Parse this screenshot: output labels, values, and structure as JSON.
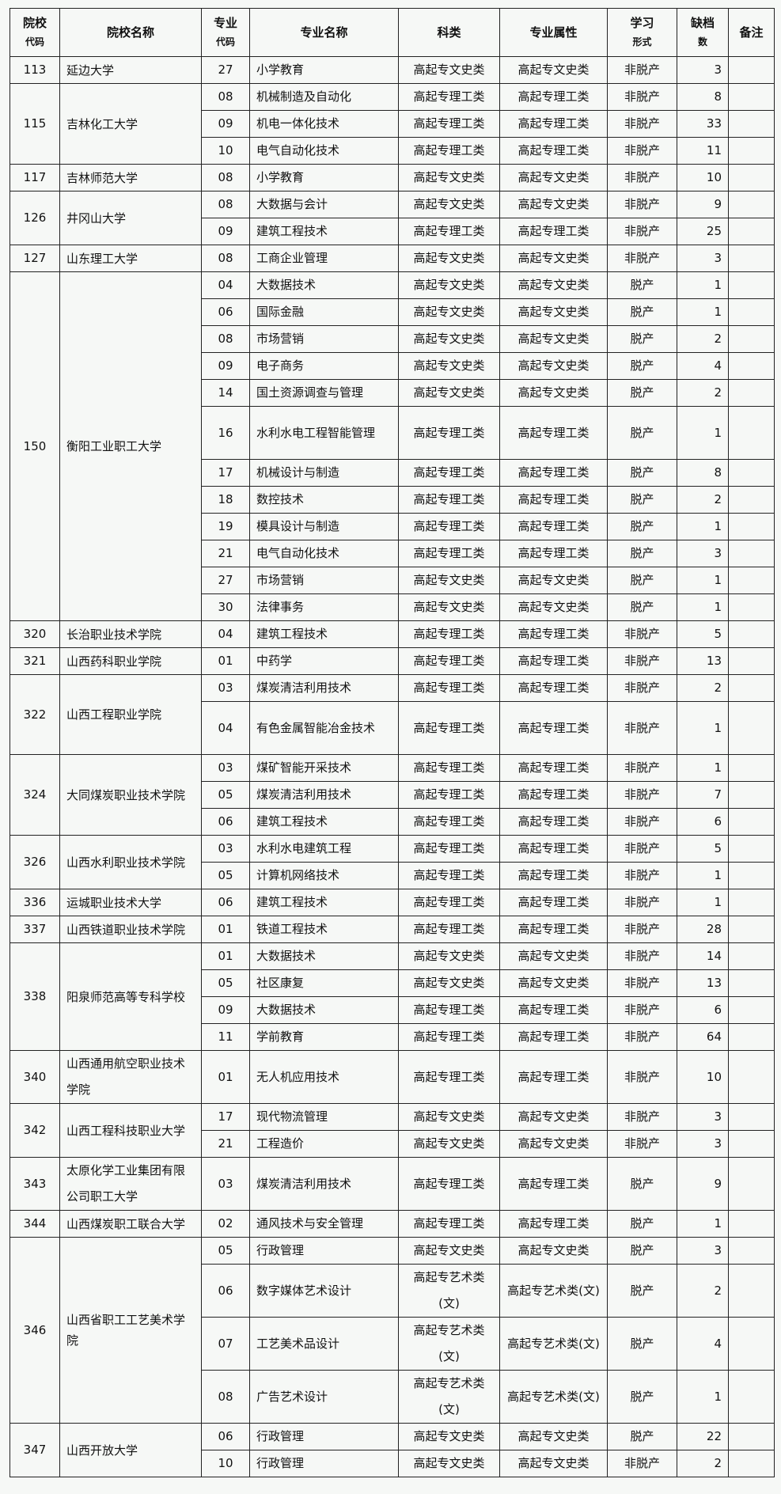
{
  "header": [
    {
      "line1": "院校",
      "line2": "代码"
    },
    {
      "line1": "院校名称",
      "line2": ""
    },
    {
      "line1": "专业",
      "line2": "代码"
    },
    {
      "line1": "专业名称",
      "line2": ""
    },
    {
      "line1": "科类",
      "line2": ""
    },
    {
      "line1": "专业属性",
      "line2": ""
    },
    {
      "line1": "学习",
      "line2": "形式"
    },
    {
      "line1": "缺档",
      "line2": "数"
    },
    {
      "line1": "备注",
      "line2": ""
    }
  ],
  "schools": [
    {
      "code": "113",
      "name": "延边大学",
      "majors": [
        [
          "27",
          "小学教育",
          "高起专文史类",
          "高起专文史类",
          "非脱产",
          "3"
        ]
      ]
    },
    {
      "code": "115",
      "name": "吉林化工大学",
      "majors": [
        [
          "08",
          "机械制造及自动化",
          "高起专理工类",
          "高起专理工类",
          "非脱产",
          "8"
        ],
        [
          "09",
          "机电一体化技术",
          "高起专理工类",
          "高起专理工类",
          "非脱产",
          "33"
        ],
        [
          "10",
          "电气自动化技术",
          "高起专理工类",
          "高起专理工类",
          "非脱产",
          "11"
        ]
      ]
    },
    {
      "code": "117",
      "name": "吉林师范大学",
      "majors": [
        [
          "08",
          "小学教育",
          "高起专文史类",
          "高起专文史类",
          "非脱产",
          "10"
        ]
      ]
    },
    {
      "code": "126",
      "name": "井冈山大学",
      "majors": [
        [
          "08",
          "大数据与会计",
          "高起专文史类",
          "高起专文史类",
          "非脱产",
          "9"
        ],
        [
          "09",
          "建筑工程技术",
          "高起专理工类",
          "高起专理工类",
          "非脱产",
          "25"
        ]
      ]
    },
    {
      "code": "127",
      "name": "山东理工大学",
      "majors": [
        [
          "08",
          "工商企业管理",
          "高起专文史类",
          "高起专文史类",
          "非脱产",
          "3"
        ]
      ]
    },
    {
      "code": "150",
      "name": "衡阳工业职工大学",
      "majors": [
        [
          "04",
          "大数据技术",
          "高起专文史类",
          "高起专文史类",
          "脱产",
          "1"
        ],
        [
          "06",
          "国际金融",
          "高起专文史类",
          "高起专文史类",
          "脱产",
          "1"
        ],
        [
          "08",
          "市场营销",
          "高起专文史类",
          "高起专文史类",
          "脱产",
          "2"
        ],
        [
          "09",
          "电子商务",
          "高起专文史类",
          "高起专文史类",
          "脱产",
          "4"
        ],
        [
          "14",
          "国土资源调查与管理",
          "高起专文史类",
          "高起专文史类",
          "脱产",
          "2"
        ],
        [
          "16",
          "水利水电工程智能管理",
          "高起专理工类",
          "高起专理工类",
          "脱产",
          "1"
        ],
        [
          "17",
          "机械设计与制造",
          "高起专理工类",
          "高起专理工类",
          "脱产",
          "8"
        ],
        [
          "18",
          "数控技术",
          "高起专理工类",
          "高起专理工类",
          "脱产",
          "2"
        ],
        [
          "19",
          "模具设计与制造",
          "高起专理工类",
          "高起专理工类",
          "脱产",
          "1"
        ],
        [
          "21",
          "电气自动化技术",
          "高起专理工类",
          "高起专理工类",
          "脱产",
          "3"
        ],
        [
          "27",
          "市场营销",
          "高起专文史类",
          "高起专文史类",
          "脱产",
          "1"
        ],
        [
          "30",
          "法律事务",
          "高起专文史类",
          "高起专文史类",
          "脱产",
          "1"
        ]
      ]
    },
    {
      "code": "320",
      "name": "长治职业技术学院",
      "majors": [
        [
          "04",
          "建筑工程技术",
          "高起专理工类",
          "高起专理工类",
          "非脱产",
          "5"
        ]
      ]
    },
    {
      "code": "321",
      "name": "山西药科职业学院",
      "majors": [
        [
          "01",
          "中药学",
          "高起专理工类",
          "高起专理工类",
          "非脱产",
          "13"
        ]
      ]
    },
    {
      "code": "322",
      "name": "山西工程职业学院",
      "majors": [
        [
          "03",
          "煤炭清洁利用技术",
          "高起专理工类",
          "高起专理工类",
          "非脱产",
          "2"
        ],
        [
          "04",
          "有色金属智能冶金技术",
          "高起专理工类",
          "高起专理工类",
          "非脱产",
          "1"
        ]
      ]
    },
    {
      "code": "324",
      "name": "大同煤炭职业技术学院",
      "majors": [
        [
          "03",
          "煤矿智能开采技术",
          "高起专理工类",
          "高起专理工类",
          "非脱产",
          "1"
        ],
        [
          "05",
          "煤炭清洁利用技术",
          "高起专理工类",
          "高起专理工类",
          "非脱产",
          "7"
        ],
        [
          "06",
          "建筑工程技术",
          "高起专理工类",
          "高起专理工类",
          "非脱产",
          "6"
        ]
      ]
    },
    {
      "code": "326",
      "name": "山西水利职业技术学院",
      "majors": [
        [
          "03",
          "水利水电建筑工程",
          "高起专理工类",
          "高起专理工类",
          "非脱产",
          "5"
        ],
        [
          "05",
          "计算机网络技术",
          "高起专理工类",
          "高起专理工类",
          "非脱产",
          "1"
        ]
      ]
    },
    {
      "code": "336",
      "name": "运城职业技术大学",
      "majors": [
        [
          "06",
          "建筑工程技术",
          "高起专理工类",
          "高起专理工类",
          "非脱产",
          "1"
        ]
      ]
    },
    {
      "code": "337",
      "name": "山西铁道职业技术学院",
      "majors": [
        [
          "01",
          "铁道工程技术",
          "高起专理工类",
          "高起专理工类",
          "非脱产",
          "28"
        ]
      ]
    },
    {
      "code": "338",
      "name": "阳泉师范高等专科学校",
      "majors": [
        [
          "01",
          "大数据技术",
          "高起专文史类",
          "高起专文史类",
          "非脱产",
          "14"
        ],
        [
          "05",
          "社区康复",
          "高起专文史类",
          "高起专文史类",
          "非脱产",
          "13"
        ],
        [
          "09",
          "大数据技术",
          "高起专理工类",
          "高起专理工类",
          "非脱产",
          "6"
        ],
        [
          "11",
          "学前教育",
          "高起专理工类",
          "高起专理工类",
          "非脱产",
          "64"
        ]
      ]
    },
    {
      "code": "340",
      "name": "山西通用航空职业技术学院",
      "majors": [
        [
          "01",
          "无人机应用技术",
          "高起专理工类",
          "高起专理工类",
          "非脱产",
          "10"
        ]
      ]
    },
    {
      "code": "342",
      "name": "山西工程科技职业大学",
      "majors": [
        [
          "17",
          "现代物流管理",
          "高起专文史类",
          "高起专文史类",
          "非脱产",
          "3"
        ],
        [
          "21",
          "工程造价",
          "高起专文史类",
          "高起专文史类",
          "非脱产",
          "3"
        ]
      ]
    },
    {
      "code": "343",
      "name": "太原化学工业集团有限公司职工大学",
      "majors": [
        [
          "03",
          "煤炭清洁利用技术",
          "高起专理工类",
          "高起专理工类",
          "脱产",
          "9"
        ]
      ]
    },
    {
      "code": "344",
      "name": "山西煤炭职工联合大学",
      "majors": [
        [
          "02",
          "通风技术与安全管理",
          "高起专理工类",
          "高起专理工类",
          "脱产",
          "1"
        ]
      ]
    },
    {
      "code": "346",
      "name": "山西省职工工艺美术学院",
      "majors": [
        [
          "05",
          "行政管理",
          "高起专文史类",
          "高起专文史类",
          "脱产",
          "3"
        ],
        [
          "06",
          "数字媒体艺术设计",
          "高起专艺术类(文)",
          "高起专艺术类(文)",
          "脱产",
          "2"
        ],
        [
          "07",
          "工艺美术品设计",
          "高起专艺术类(文)",
          "高起专艺术类(文)",
          "脱产",
          "4"
        ],
        [
          "08",
          "广告艺术设计",
          "高起专艺术类(文)",
          "高起专艺术类(文)",
          "脱产",
          "1"
        ]
      ]
    },
    {
      "code": "347",
      "name": "山西开放大学",
      "majors": [
        [
          "06",
          "行政管理",
          "高起专文史类",
          "高起专文史类",
          "脱产",
          "22"
        ],
        [
          "10",
          "行政管理",
          "高起专文史类",
          "高起专文史类",
          "非脱产",
          "2"
        ]
      ]
    }
  ]
}
